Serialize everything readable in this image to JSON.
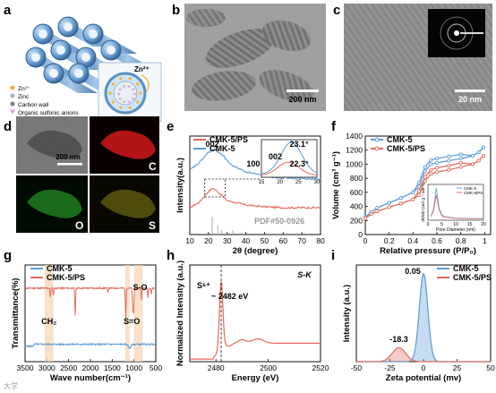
{
  "panel_labels": [
    "a",
    "b",
    "c",
    "d",
    "e",
    "f",
    "g",
    "h",
    "i"
  ],
  "colors": {
    "blue": "#5b9bd5",
    "red": "#e06b5b",
    "shade": "#f7d3b0",
    "gray": "#555555"
  },
  "panel_a": {
    "legend": [
      {
        "label": "Zn²⁺",
        "color": "#f2b32f"
      },
      {
        "label": "Zinc",
        "color": "#9fb4c8"
      },
      {
        "label": "Carbon wall",
        "color": "#7a7f88"
      },
      {
        "label": "Organic sulfonic anions",
        "color": "#c97bd0"
      }
    ],
    "inset_label": "Zn²⁺"
  },
  "panel_b": {
    "scale": "200 nm"
  },
  "panel_c": {
    "scale": "20 nm"
  },
  "panel_d": {
    "scale": "200 nm",
    "maps": [
      "C",
      "O",
      "S"
    ]
  },
  "chart_data": [
    {
      "panel": "e",
      "type": "line",
      "xlabel": "2θ (degree)",
      "ylabel": "Intensity(a.u.)",
      "xlim": [
        10,
        80
      ],
      "xticks": [
        10,
        20,
        30,
        40,
        50,
        60,
        70,
        80
      ],
      "series": [
        {
          "name": "CMK-5/PS",
          "color": "#e06b5b",
          "x": [
            10,
            15,
            20,
            22.3,
            25,
            30,
            40,
            50,
            60,
            70,
            80
          ],
          "y": [
            0.3,
            0.36,
            0.48,
            0.52,
            0.48,
            0.38,
            0.33,
            0.31,
            0.3,
            0.3,
            0.3
          ]
        },
        {
          "name": "CMK-5",
          "color": "#5b9bd5",
          "x": [
            10,
            15,
            20,
            23.1,
            27,
            32,
            40,
            43,
            48,
            55,
            65,
            80
          ],
          "y": [
            0.72,
            0.8,
            0.92,
            0.95,
            0.9,
            0.78,
            0.7,
            0.69,
            0.66,
            0.64,
            0.63,
            0.62
          ]
        }
      ],
      "annotations": [
        {
          "text": "002",
          "x": 22,
          "y": 0.98
        },
        {
          "text": "100",
          "x": 44,
          "y": 0.76
        },
        {
          "text": "PDF#50-0926",
          "x": 58,
          "y": 0.12
        }
      ],
      "inset": {
        "xlim": [
          15,
          30
        ],
        "xticks": [
          15,
          20,
          25,
          30
        ],
        "labels": [
          "23.1°",
          "002",
          "22.3°"
        ]
      },
      "reference_peaks": [
        {
          "x": 22,
          "h": 0.2
        },
        {
          "x": 25,
          "h": 0.1
        },
        {
          "x": 27,
          "h": 0.05
        },
        {
          "x": 33,
          "h": 0.05
        }
      ]
    },
    {
      "panel": "f",
      "type": "line",
      "xlabel": "Relative pressure (P/P₀)",
      "ylabel": "Volume (cm³ g⁻¹)",
      "xlim": [
        0,
        1.05
      ],
      "ylim": [
        0,
        1400
      ],
      "xticks": [
        0.0,
        0.2,
        0.4,
        0.6,
        0.8,
        1.0
      ],
      "yticks": [
        0,
        200,
        400,
        600,
        800,
        1000,
        1200,
        1400
      ],
      "series": [
        {
          "name": "CMK-5",
          "color": "#5b9bd5",
          "x": [
            0.0,
            0.05,
            0.1,
            0.2,
            0.3,
            0.4,
            0.45,
            0.5,
            0.55,
            0.6,
            0.7,
            0.8,
            0.9,
            0.95,
            0.99
          ],
          "y": [
            250,
            320,
            380,
            450,
            520,
            600,
            680,
            900,
            1000,
            1020,
            1050,
            1080,
            1120,
            1170,
            1240
          ]
        },
        {
          "name": "CMK-5/PS",
          "color": "#e06b5b",
          "x": [
            0.0,
            0.05,
            0.1,
            0.2,
            0.3,
            0.4,
            0.45,
            0.5,
            0.55,
            0.6,
            0.7,
            0.8,
            0.9,
            0.95,
            0.99
          ],
          "y": [
            230,
            290,
            330,
            390,
            440,
            500,
            560,
            760,
            860,
            890,
            920,
            960,
            1000,
            1050,
            1120
          ]
        }
      ],
      "inset": {
        "xlabel": "Pore Diameter (nm)",
        "ylabel": "dV/dD (cm³ g⁻¹ nm⁻¹)",
        "xticks": [
          0,
          5,
          10,
          15,
          20
        ],
        "legend": [
          "CMK-5",
          "CMK-5/PS"
        ],
        "series": [
          {
            "name": "CMK-5",
            "color": "#5b9bd5",
            "x": [
              1,
              2,
              3,
              4,
              5,
              6,
              8,
              10,
              15,
              20
            ],
            "y": [
              0.1,
              0.3,
              0.9,
              0.35,
              0.15,
              0.1,
              0.08,
              0.06,
              0.05,
              0.05
            ]
          },
          {
            "name": "CMK-5/PS",
            "color": "#e06b5b",
            "x": [
              1,
              2,
              3,
              4,
              5,
              6,
              8,
              10,
              15,
              20
            ],
            "y": [
              0.1,
              0.25,
              0.7,
              0.3,
              0.12,
              0.09,
              0.07,
              0.05,
              0.04,
              0.04
            ]
          }
        ]
      }
    },
    {
      "panel": "g",
      "type": "line",
      "xlabel": "Wave number(cm⁻¹)",
      "ylabel": "Transmittance(%)",
      "xlim": [
        3500,
        500
      ],
      "xticks": [
        3500,
        3000,
        2500,
        2000,
        1500,
        1000,
        500
      ],
      "series": [
        {
          "name": "CMK-5",
          "color": "#5b9bd5"
        },
        {
          "name": "CMK-5/PS",
          "color": "#e06b5b"
        }
      ],
      "shaded_regions": [
        [
          3050,
          2850
        ],
        [
          1200,
          1100
        ],
        [
          1000,
          800
        ]
      ],
      "annotations": [
        {
          "text": "CH₂",
          "x": 2950
        },
        {
          "text": "S=O",
          "x": 1050
        },
        {
          "text": "S-O",
          "x": 900
        }
      ]
    },
    {
      "panel": "h",
      "type": "line",
      "xlabel": "Energy (eV)",
      "ylabel": "Normalized Intensity (a.u.)",
      "xlim": [
        2470,
        2520
      ],
      "xticks": [
        2480,
        2500,
        2520
      ],
      "title": "S-K",
      "series": [
        {
          "name": "CMK-5/PS",
          "color": "#e06b5b"
        }
      ],
      "annotations": [
        {
          "text": "S⁶⁺"
        },
        {
          "text": "~ 2482 eV"
        }
      ],
      "dashed_line_x": 2482
    },
    {
      "panel": "i",
      "type": "line",
      "xlabel": "Zeta potential (mv)",
      "ylabel": "Intensity (a.u.)",
      "xlim": [
        -50,
        50
      ],
      "xticks": [
        -50,
        -25,
        0,
        25,
        50
      ],
      "series": [
        {
          "name": "CMK-5",
          "color": "#5b9bd5",
          "peak": 0.05,
          "height": 1.0
        },
        {
          "name": "CMK-5/PS",
          "color": "#e06b5b",
          "peak": -18.3,
          "height": 0.16
        }
      ],
      "annotations": [
        {
          "text": "0.05"
        },
        {
          "text": "-18.3"
        }
      ]
    }
  ],
  "watermark": "大学"
}
